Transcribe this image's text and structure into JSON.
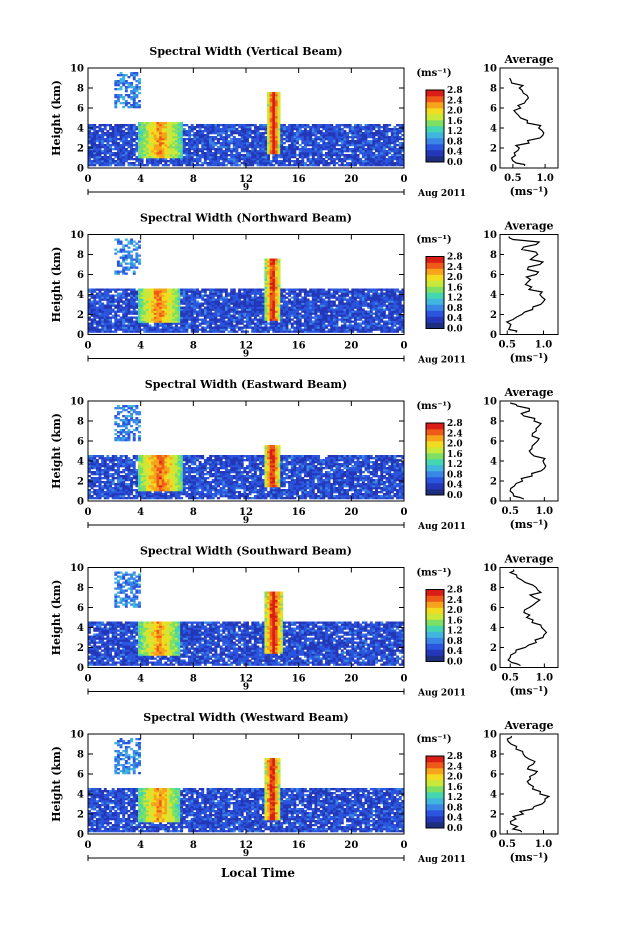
{
  "figure": {
    "xlabel": "Local Time",
    "month_label": "Aug 2011",
    "day_label": "9",
    "colorbar_unit": "(ms⁻¹)",
    "colorbar_ticks": [
      "2.8",
      "2.4",
      "2.0",
      "1.6",
      "1.2",
      "0.8",
      "0.4",
      "0.0"
    ],
    "avg_title": "Average",
    "avg_xlabel": "(ms⁻¹)",
    "colormap": [
      "#1e2e7e",
      "#2337b8",
      "#2a55dc",
      "#3a86e6",
      "#40b6df",
      "#43d6b0",
      "#7de065",
      "#c8e83a",
      "#f1dc22",
      "#f7a41c",
      "#f05a19",
      "#d81e17"
    ]
  },
  "chart_data": [
    {
      "type": "heatmap",
      "title": "Spectral Width (Vertical Beam)",
      "ylabel": "Height (km)",
      "xlim": [
        0,
        24
      ],
      "ylim": [
        0,
        10
      ],
      "x_ticks": [
        "0",
        "4",
        "8",
        "12",
        "16",
        "20",
        "0"
      ],
      "y_ticks": [
        "0",
        "2",
        "4",
        "6",
        "8",
        "10"
      ],
      "clim": [
        0.0,
        2.8
      ],
      "colorbar_ticks": [
        "2.8",
        "2.4",
        "2.0",
        "1.6",
        "1.2",
        "0.8",
        "0.4",
        "0.0"
      ],
      "features": [
        {
          "name": "background",
          "time": [
            0,
            24
          ],
          "height": [
            0.3,
            4.4
          ],
          "value": 0.5
        },
        {
          "name": "storm-low",
          "time": [
            3.8,
            7.2
          ],
          "height": [
            1.0,
            4.6
          ],
          "value": 2.3
        },
        {
          "name": "storm-peak",
          "time": [
            13.6,
            14.6
          ],
          "height": [
            1.5,
            7.5
          ],
          "value": 2.8
        },
        {
          "name": "upper-echo",
          "time": [
            2.0,
            4.0
          ],
          "height": [
            6.0,
            9.5
          ],
          "value": 0.8
        }
      ],
      "average": {
        "title": "Average",
        "xlabel": "(ms⁻¹)",
        "x_ticks": [
          "0.5",
          "1.0"
        ],
        "y_ticks": [
          "0",
          "2",
          "4",
          "6",
          "8",
          "10"
        ],
        "xlim": [
          0.3,
          1.2
        ],
        "ylim": [
          0,
          10
        ],
        "height": [
          0.2,
          0.5,
          1.0,
          1.5,
          2.0,
          2.5,
          3.0,
          3.5,
          4.0,
          4.5,
          5.0,
          5.5,
          6.0,
          6.5,
          7.0,
          7.5,
          8.0,
          8.5,
          9.0
        ],
        "value": [
          0.68,
          0.55,
          0.48,
          0.52,
          0.6,
          0.75,
          0.92,
          0.98,
          0.9,
          0.72,
          0.62,
          0.55,
          0.62,
          0.68,
          0.74,
          0.66,
          0.6,
          0.48,
          0.45
        ]
      }
    },
    {
      "type": "heatmap",
      "title": "Spectral Width (Northward Beam)",
      "ylabel": "Height (km)",
      "xlim": [
        0,
        24
      ],
      "ylim": [
        0,
        10
      ],
      "x_ticks": [
        "0",
        "4",
        "8",
        "12",
        "16",
        "20",
        "0"
      ],
      "y_ticks": [
        "0",
        "2",
        "4",
        "6",
        "8",
        "10"
      ],
      "clim": [
        0.0,
        2.8
      ],
      "colorbar_ticks": [
        "2.8",
        "2.4",
        "2.0",
        "1.6",
        "1.2",
        "0.8",
        "0.4",
        "0.0"
      ],
      "features": [
        {
          "name": "background",
          "time": [
            0,
            24
          ],
          "height": [
            0.3,
            4.6
          ],
          "value": 0.5
        },
        {
          "name": "storm-low",
          "time": [
            3.8,
            7.0
          ],
          "height": [
            1.2,
            4.5
          ],
          "value": 2.4
        },
        {
          "name": "storm-peak",
          "time": [
            13.5,
            14.6
          ],
          "height": [
            1.5,
            7.5
          ],
          "value": 2.8
        },
        {
          "name": "upper-echo",
          "time": [
            2.0,
            4.0
          ],
          "height": [
            6.0,
            9.5
          ],
          "value": 0.8
        }
      ],
      "average": {
        "title": "Average",
        "xlabel": "(ms⁻¹)",
        "x_ticks": [
          "0.5",
          "1.0"
        ],
        "y_ticks": [
          "0",
          "2",
          "4",
          "6",
          "8",
          "10"
        ],
        "xlim": [
          0.4,
          1.2
        ],
        "ylim": [
          0,
          10
        ],
        "height": [
          0.2,
          0.5,
          1.0,
          1.5,
          2.0,
          2.5,
          3.0,
          3.5,
          4.0,
          4.5,
          5.0,
          5.5,
          6.0,
          6.5,
          7.0,
          7.5,
          8.0,
          8.5,
          9.0,
          9.5,
          9.8
        ],
        "value": [
          0.62,
          0.52,
          0.55,
          0.58,
          0.7,
          0.85,
          0.96,
          1.02,
          0.95,
          0.8,
          0.75,
          0.82,
          0.9,
          0.78,
          0.95,
          0.82,
          0.92,
          0.7,
          0.9,
          0.58,
          0.52
        ]
      }
    },
    {
      "type": "heatmap",
      "title": "Spectral Width (Eastward Beam)",
      "ylabel": "Height (km)",
      "xlim": [
        0,
        24
      ],
      "ylim": [
        0,
        10
      ],
      "x_ticks": [
        "0",
        "4",
        "8",
        "12",
        "16",
        "20",
        "0"
      ],
      "y_ticks": [
        "0",
        "2",
        "4",
        "6",
        "8",
        "10"
      ],
      "clim": [
        0.0,
        2.8
      ],
      "colorbar_ticks": [
        "2.8",
        "2.4",
        "2.0",
        "1.6",
        "1.2",
        "0.8",
        "0.4",
        "0.0"
      ],
      "features": [
        {
          "name": "background",
          "time": [
            0,
            24
          ],
          "height": [
            0.3,
            4.6
          ],
          "value": 0.5
        },
        {
          "name": "storm-low",
          "time": [
            3.8,
            7.2
          ],
          "height": [
            1.0,
            4.6
          ],
          "value": 2.5
        },
        {
          "name": "storm-peak",
          "time": [
            13.4,
            14.6
          ],
          "height": [
            1.5,
            5.5
          ],
          "value": 2.8
        },
        {
          "name": "upper-echo",
          "time": [
            2.0,
            4.0
          ],
          "height": [
            6.0,
            9.5
          ],
          "value": 0.8
        }
      ],
      "average": {
        "title": "Average",
        "xlabel": "(ms⁻¹)",
        "x_ticks": [
          "0.5",
          "1.0"
        ],
        "y_ticks": [
          "0",
          "2",
          "4",
          "6",
          "8",
          "10"
        ],
        "xlim": [
          0.35,
          1.2
        ],
        "ylim": [
          0,
          10
        ],
        "height": [
          0.2,
          0.5,
          1.0,
          1.5,
          2.0,
          2.5,
          3.0,
          3.5,
          4.0,
          4.5,
          5.0,
          5.5,
          6.0,
          6.5,
          7.0,
          7.5,
          8.0,
          8.5,
          9.0,
          9.5,
          9.8
        ],
        "value": [
          0.7,
          0.55,
          0.5,
          0.56,
          0.68,
          0.82,
          0.95,
          1.02,
          0.98,
          0.85,
          0.78,
          0.82,
          0.9,
          0.82,
          0.88,
          0.92,
          0.85,
          0.7,
          0.78,
          0.6,
          0.5
        ]
      }
    },
    {
      "type": "heatmap",
      "title": "Spectral Width (Southward Beam)",
      "ylabel": "Height (km)",
      "xlim": [
        0,
        24
      ],
      "ylim": [
        0,
        10
      ],
      "x_ticks": [
        "0",
        "4",
        "8",
        "12",
        "16",
        "20",
        "0"
      ],
      "y_ticks": [
        "0",
        "2",
        "4",
        "6",
        "8",
        "10"
      ],
      "clim": [
        0.0,
        2.8
      ],
      "colorbar_ticks": [
        "2.8",
        "2.4",
        "2.0",
        "1.6",
        "1.2",
        "0.8",
        "0.4",
        "0.0"
      ],
      "features": [
        {
          "name": "background",
          "time": [
            0,
            24
          ],
          "height": [
            0.3,
            4.6
          ],
          "value": 0.5
        },
        {
          "name": "storm-low",
          "time": [
            3.8,
            7.0
          ],
          "height": [
            1.2,
            4.5
          ],
          "value": 2.3
        },
        {
          "name": "storm-peak",
          "time": [
            13.4,
            14.8
          ],
          "height": [
            1.5,
            7.5
          ],
          "value": 2.8
        },
        {
          "name": "upper-echo",
          "time": [
            2.0,
            4.0
          ],
          "height": [
            6.0,
            9.5
          ],
          "value": 0.8
        }
      ],
      "average": {
        "title": "Average",
        "xlabel": "(ms⁻¹)",
        "x_ticks": [
          "0.5",
          "1.0"
        ],
        "y_ticks": [
          "0",
          "2",
          "4",
          "6",
          "8",
          "10"
        ],
        "xlim": [
          0.35,
          1.2
        ],
        "ylim": [
          0,
          10
        ],
        "height": [
          0.2,
          0.5,
          1.0,
          1.5,
          2.0,
          2.5,
          3.0,
          3.5,
          4.0,
          4.5,
          5.0,
          5.5,
          6.0,
          6.5,
          7.0,
          7.5,
          8.0,
          8.5,
          9.0,
          9.5,
          9.8
        ],
        "value": [
          0.65,
          0.52,
          0.5,
          0.58,
          0.72,
          0.88,
          0.98,
          1.03,
          0.96,
          0.82,
          0.74,
          0.7,
          0.78,
          0.88,
          0.85,
          0.95,
          0.88,
          0.72,
          0.6,
          0.5,
          0.55
        ]
      }
    },
    {
      "type": "heatmap",
      "title": "Spectral Width (Westward Beam)",
      "ylabel": "Height (km)",
      "xlim": [
        0,
        24
      ],
      "ylim": [
        0,
        10
      ],
      "x_ticks": [
        "0",
        "4",
        "8",
        "12",
        "16",
        "20",
        "0"
      ],
      "y_ticks": [
        "0",
        "2",
        "4",
        "6",
        "8",
        "10"
      ],
      "clim": [
        0.0,
        2.8
      ],
      "colorbar_ticks": [
        "2.8",
        "2.4",
        "2.0",
        "1.6",
        "1.2",
        "0.8",
        "0.4",
        "0.0"
      ],
      "features": [
        {
          "name": "background",
          "time": [
            0,
            24
          ],
          "height": [
            0.3,
            4.6
          ],
          "value": 0.5
        },
        {
          "name": "storm-low",
          "time": [
            3.8,
            7.0
          ],
          "height": [
            1.2,
            4.5
          ],
          "value": 2.3
        },
        {
          "name": "storm-peak",
          "time": [
            13.4,
            14.6
          ],
          "height": [
            1.5,
            7.5
          ],
          "value": 2.8
        },
        {
          "name": "upper-echo",
          "time": [
            2.0,
            4.0
          ],
          "height": [
            6.0,
            9.5
          ],
          "value": 0.8
        }
      ],
      "average": {
        "title": "Average",
        "xlabel": "(ms⁻¹)",
        "x_ticks": [
          "0.5",
          "1.0"
        ],
        "y_ticks": [
          "0",
          "2",
          "4",
          "6",
          "8",
          "10"
        ],
        "xlim": [
          0.4,
          1.2
        ],
        "ylim": [
          0,
          10
        ],
        "height": [
          0.2,
          0.5,
          1.0,
          1.5,
          2.0,
          2.5,
          3.0,
          3.5,
          4.0,
          4.5,
          5.0,
          5.5,
          6.0,
          6.5,
          7.0,
          7.5,
          8.0,
          8.5,
          9.0,
          9.5,
          9.8
        ],
        "value": [
          0.7,
          0.58,
          0.55,
          0.62,
          0.72,
          0.85,
          0.98,
          1.02,
          0.95,
          0.85,
          0.8,
          0.82,
          0.88,
          0.78,
          0.86,
          0.8,
          0.72,
          0.62,
          0.55,
          0.5,
          0.56
        ]
      }
    }
  ]
}
